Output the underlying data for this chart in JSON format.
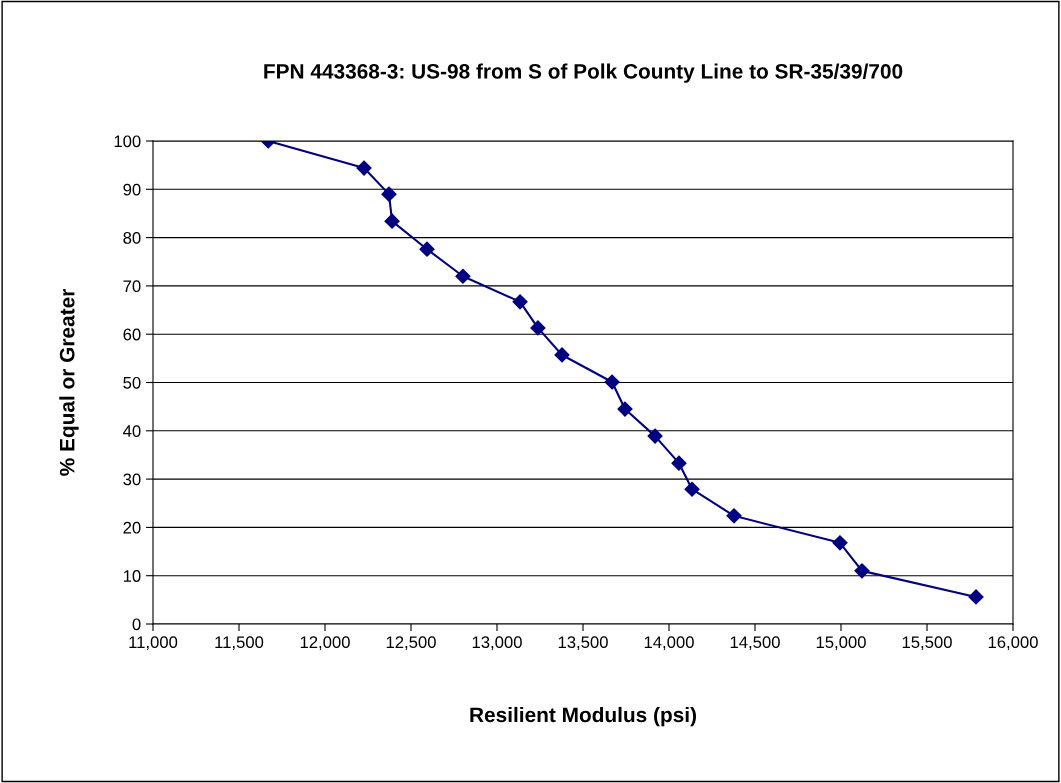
{
  "chart_data": {
    "type": "line",
    "title": "FPN 443368-3: US-98 from S of Polk County Line to SR-35/39/700",
    "xlabel": "Resilient Modulus (psi)",
    "ylabel": "% Equal or Greater",
    "x": [
      11670,
      12227,
      12372,
      12390,
      12593,
      12802,
      13134,
      13238,
      13378,
      13669,
      13744,
      13919,
      14058,
      14134,
      14378,
      14994,
      15122,
      15785
    ],
    "series": [
      {
        "color": "#000080",
        "values": [
          100,
          94.4,
          89.0,
          83.4,
          77.6,
          72.0,
          66.7,
          61.3,
          55.7,
          50.1,
          44.5,
          38.9,
          33.3,
          27.9,
          22.4,
          16.8,
          11.0,
          5.6
        ]
      }
    ],
    "xlim": [
      11000,
      16000
    ],
    "xticks": [
      {
        "value": 11000,
        "label": "11,000"
      },
      {
        "value": 11500,
        "label": "11,500"
      },
      {
        "value": 12000,
        "label": "12,000"
      },
      {
        "value": 12500,
        "label": "12,500"
      },
      {
        "value": 13000,
        "label": "13,000"
      },
      {
        "value": 13500,
        "label": "13,500"
      },
      {
        "value": 14000,
        "label": "14,000"
      },
      {
        "value": 14500,
        "label": "14,500"
      },
      {
        "value": 15000,
        "label": "15,000"
      },
      {
        "value": 15500,
        "label": "15,500"
      },
      {
        "value": 16000,
        "label": "16,000"
      }
    ],
    "ylim": [
      0,
      100
    ],
    "yticks": [
      0,
      10,
      20,
      30,
      40,
      50,
      60,
      70,
      80,
      90,
      100
    ],
    "grid": "y",
    "legend": false,
    "marker": "diamond",
    "line_style": "solid"
  }
}
